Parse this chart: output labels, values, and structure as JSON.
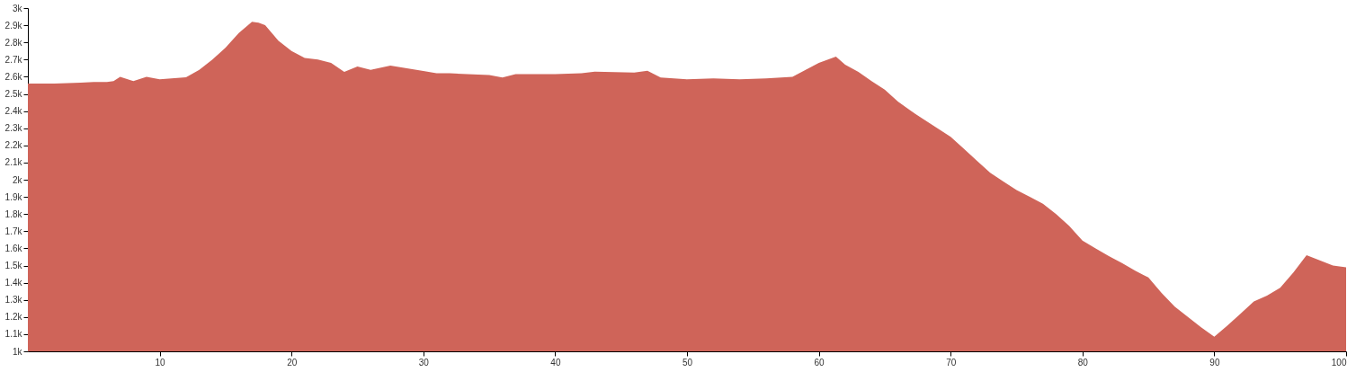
{
  "chart_data": {
    "type": "area",
    "color": "#cf6459",
    "x": [
      0,
      2,
      4,
      5,
      6,
      6.5,
      7,
      8,
      9,
      10,
      12,
      13,
      14,
      15,
      16,
      17,
      17.5,
      18,
      19,
      20,
      21,
      22,
      23,
      24,
      25,
      26,
      27.5,
      30,
      31,
      32,
      35,
      36,
      37,
      40,
      42,
      43,
      46,
      47,
      48,
      49,
      50,
      52,
      54,
      56,
      58,
      59,
      60,
      61.3,
      62,
      63,
      64,
      65,
      66,
      67,
      68,
      69,
      70,
      71,
      72,
      73,
      74,
      75,
      76,
      77,
      78,
      79,
      80,
      81,
      82,
      83,
      84,
      85,
      86,
      87,
      88,
      89,
      90,
      91,
      92,
      93,
      94,
      95,
      96,
      97,
      98,
      99,
      100
    ],
    "values": [
      2560,
      2560,
      2565,
      2570,
      2570,
      2575,
      2600,
      2575,
      2600,
      2585,
      2597,
      2640,
      2700,
      2770,
      2855,
      2920,
      2915,
      2900,
      2810,
      2750,
      2710,
      2700,
      2680,
      2628,
      2660,
      2640,
      2665,
      2633,
      2620,
      2620,
      2610,
      2595,
      2615,
      2615,
      2620,
      2630,
      2625,
      2635,
      2595,
      2590,
      2585,
      2590,
      2585,
      2590,
      2600,
      2640,
      2680,
      2717,
      2670,
      2628,
      2575,
      2525,
      2455,
      2400,
      2350,
      2300,
      2250,
      2180,
      2110,
      2040,
      1990,
      1940,
      1900,
      1860,
      1800,
      1730,
      1645,
      1600,
      1555,
      1515,
      1470,
      1430,
      1340,
      1260,
      1200,
      1140,
      1085,
      1150,
      1220,
      1290,
      1325,
      1370,
      1460,
      1560,
      1530,
      1500,
      1490
    ],
    "xlim": [
      0,
      100
    ],
    "xticks": [
      10,
      20,
      30,
      40,
      50,
      60,
      70,
      80,
      90,
      100
    ],
    "ylim": [
      1000,
      3000
    ],
    "yticks": [
      {
        "value": 1000,
        "label": "1k"
      },
      {
        "value": 1100,
        "label": "1.1k"
      },
      {
        "value": 1200,
        "label": "1.2k"
      },
      {
        "value": 1300,
        "label": "1.3k"
      },
      {
        "value": 1400,
        "label": "1.4k"
      },
      {
        "value": 1500,
        "label": "1.5k"
      },
      {
        "value": 1600,
        "label": "1.6k"
      },
      {
        "value": 1700,
        "label": "1.7k"
      },
      {
        "value": 1800,
        "label": "1.8k"
      },
      {
        "value": 1900,
        "label": "1.9k"
      },
      {
        "value": 2000,
        "label": "2k"
      },
      {
        "value": 2100,
        "label": "2.1k"
      },
      {
        "value": 2200,
        "label": "2.2k"
      },
      {
        "value": 2300,
        "label": "2.3k"
      },
      {
        "value": 2400,
        "label": "2.4k"
      },
      {
        "value": 2500,
        "label": "2.5k"
      },
      {
        "value": 2600,
        "label": "2.6k"
      },
      {
        "value": 2700,
        "label": "2.7k"
      },
      {
        "value": 2800,
        "label": "2.8k"
      },
      {
        "value": 2900,
        "label": "2.9k"
      },
      {
        "value": 3000,
        "label": "3k"
      }
    ],
    "grid": false
  }
}
